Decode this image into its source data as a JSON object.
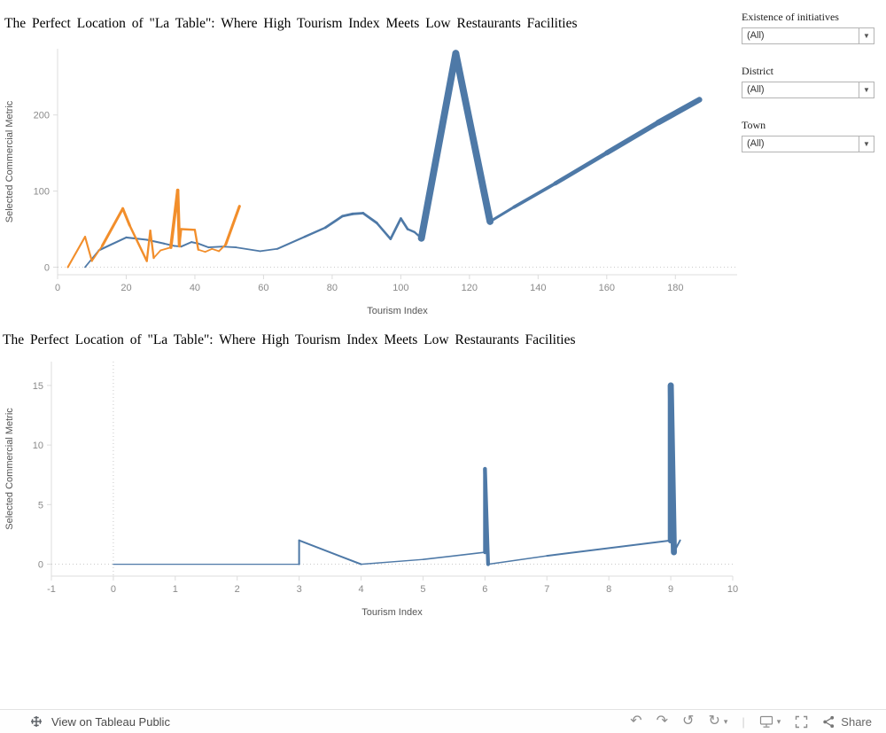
{
  "filters": {
    "caret_glyph": "▼",
    "items": [
      {
        "label": "Existence of initiatives",
        "value": "(All)"
      },
      {
        "label": "District",
        "value": "(All)"
      },
      {
        "label": "Town",
        "value": "(All)"
      }
    ]
  },
  "toolbar": {
    "logo_label": "View on Tableau Public",
    "undo_glyph": "↶",
    "redo_glyph": "↷",
    "revert_glyph": "↺",
    "refresh_glyph": "↻",
    "caret_glyph": "▾",
    "separator_glyph": "|",
    "share_label": "Share"
  },
  "chart_data": [
    {
      "type": "line",
      "title": "The Perfect Location of \"La Table\": Where High Tourism Index Meets Low Restaurants Facilities",
      "xlabel": "Tourism Index",
      "ylabel": "Selected Commercial Metric",
      "xlim": [
        0,
        198
      ],
      "ylim": [
        -10,
        287
      ],
      "xticks": [
        0,
        20,
        40,
        60,
        80,
        100,
        120,
        140,
        160,
        180
      ],
      "yticks": [
        0,
        100,
        200
      ],
      "grid": "zero-line-only",
      "legend": "none",
      "series": [
        {
          "name": "blue",
          "color": "#4e79a7",
          "points": [
            [
              8,
              0
            ],
            [
              12,
              22
            ],
            [
              20,
              39
            ],
            [
              26,
              36
            ],
            [
              31,
              31
            ],
            [
              34,
              28
            ],
            [
              36,
              27
            ],
            [
              39,
              33
            ],
            [
              41,
              31
            ],
            [
              44,
              26
            ],
            [
              48,
              27
            ],
            [
              52,
              26
            ],
            [
              59,
              21
            ],
            [
              64,
              24
            ],
            [
              72,
              40
            ],
            [
              78,
              52
            ],
            [
              83,
              67
            ],
            [
              86,
              70
            ],
            [
              89,
              71
            ],
            [
              93,
              58
            ],
            [
              97,
              37
            ],
            [
              100,
              64
            ],
            [
              102,
              50
            ],
            [
              104,
              46
            ],
            [
              106,
              38
            ],
            [
              116,
              281
            ],
            [
              126,
              60
            ],
            [
              133,
              79
            ],
            [
              145,
              110
            ],
            [
              160,
              150
            ],
            [
              175,
              190
            ],
            [
              187,
              220
            ]
          ]
        },
        {
          "name": "orange",
          "color": "#f28e2b",
          "points": [
            [
              3,
              0
            ],
            [
              8,
              40
            ],
            [
              10,
              8
            ],
            [
              13,
              28
            ],
            [
              19,
              77
            ],
            [
              21,
              55
            ],
            [
              26,
              8
            ],
            [
              27,
              48
            ],
            [
              28,
              12
            ],
            [
              30,
              22
            ],
            [
              33,
              26
            ],
            [
              35,
              101
            ],
            [
              35.5,
              28
            ],
            [
              36,
              50
            ],
            [
              40,
              49
            ],
            [
              41,
              23
            ],
            [
              43,
              20
            ],
            [
              45,
              24
            ],
            [
              47,
              21
            ],
            [
              49,
              30
            ],
            [
              53,
              80
            ]
          ]
        }
      ]
    },
    {
      "type": "line",
      "title": "The Perfect Location of \"La Table\": Where High Tourism Index Meets Low Restaurants Facilities",
      "xlabel": "Tourism Index",
      "ylabel": "Selected Commercial Metric",
      "xlim": [
        -1,
        10
      ],
      "ylim": [
        -1,
        17
      ],
      "xticks": [
        -1,
        0,
        1,
        2,
        3,
        4,
        5,
        6,
        7,
        8,
        9,
        10
      ],
      "yticks": [
        0,
        5,
        10,
        15
      ],
      "zero_vline": 0,
      "grid": "zero-line-only",
      "legend": "none",
      "series": [
        {
          "name": "blue",
          "color": "#4e79a7",
          "points": [
            [
              0,
              0
            ],
            [
              3,
              0
            ],
            [
              3,
              2
            ],
            [
              4,
              0
            ],
            [
              5,
              0.4
            ],
            [
              6,
              1
            ],
            [
              6,
              8
            ],
            [
              6.05,
              0
            ],
            [
              7,
              0.7
            ],
            [
              9,
              2
            ],
            [
              9,
              15
            ],
            [
              9.05,
              1
            ],
            [
              9.15,
              2
            ]
          ]
        }
      ]
    }
  ]
}
